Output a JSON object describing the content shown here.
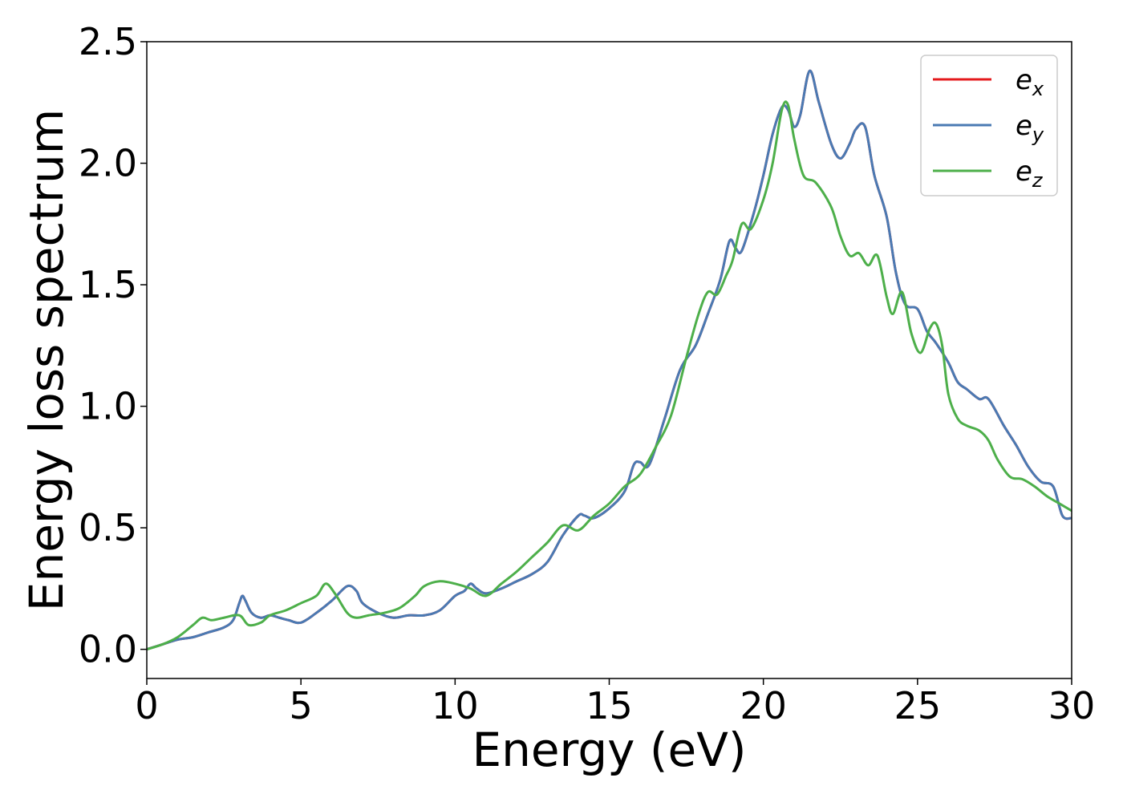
{
  "chart_data": {
    "type": "line",
    "title": "",
    "xlabel": "Energy (eV)",
    "ylabel": "Energy loss spectrum",
    "xlim": [
      0,
      30
    ],
    "ylim": [
      -0.12,
      2.5
    ],
    "xticks": [
      0,
      5,
      10,
      15,
      20,
      25,
      30
    ],
    "xtick_labels": [
      "0",
      "5",
      "10",
      "15",
      "20",
      "25",
      "30"
    ],
    "yticks": [
      0.0,
      0.5,
      1.0,
      1.5,
      2.0,
      2.5
    ],
    "ytick_labels": [
      "0.0",
      "0.5",
      "1.0",
      "1.5",
      "2.0",
      "2.5"
    ],
    "grid": false,
    "legend_position": "top-right",
    "series": [
      {
        "name": "e_x",
        "legend_base": "e",
        "legend_sub": "x",
        "color": "#e41a1c",
        "x": [
          0,
          0.5,
          1,
          1.5,
          2,
          2.5,
          2.8,
          3,
          3.1,
          3.2,
          3.4,
          3.7,
          4,
          4.3,
          4.6,
          5,
          5.5,
          6,
          6.5,
          6.8,
          7,
          7.5,
          8,
          8.5,
          9,
          9.5,
          10,
          10.3,
          10.5,
          10.7,
          11,
          11.5,
          12,
          12.5,
          13,
          13.5,
          14,
          14.2,
          14.5,
          15,
          15.5,
          15.8,
          16,
          16.3,
          16.8,
          17.3,
          17.8,
          18.2,
          18.6,
          18.9,
          19.1,
          19.3,
          19.7,
          20,
          20.3,
          20.6,
          20.8,
          21,
          21.2,
          21.5,
          21.8,
          22.2,
          22.5,
          22.8,
          23,
          23.3,
          23.6,
          24,
          24.3,
          24.6,
          25,
          25.3,
          25.6,
          26,
          26.3,
          26.6,
          27,
          27.3,
          27.8,
          28.2,
          28.6,
          29,
          29.4,
          29.7,
          30
        ],
        "y": [
          0,
          0.02,
          0.04,
          0.05,
          0.07,
          0.09,
          0.12,
          0.19,
          0.22,
          0.2,
          0.15,
          0.13,
          0.14,
          0.13,
          0.12,
          0.11,
          0.15,
          0.2,
          0.26,
          0.24,
          0.19,
          0.15,
          0.13,
          0.14,
          0.14,
          0.16,
          0.22,
          0.24,
          0.27,
          0.25,
          0.23,
          0.25,
          0.28,
          0.31,
          0.36,
          0.47,
          0.55,
          0.55,
          0.54,
          0.58,
          0.65,
          0.76,
          0.77,
          0.76,
          0.95,
          1.15,
          1.25,
          1.38,
          1.52,
          1.68,
          1.65,
          1.64,
          1.8,
          1.95,
          2.12,
          2.23,
          2.22,
          2.15,
          2.2,
          2.38,
          2.25,
          2.08,
          2.02,
          2.08,
          2.14,
          2.15,
          1.95,
          1.78,
          1.55,
          1.42,
          1.4,
          1.31,
          1.26,
          1.18,
          1.1,
          1.07,
          1.03,
          1.03,
          0.92,
          0.84,
          0.75,
          0.69,
          0.67,
          0.55,
          0.54
        ]
      },
      {
        "name": "e_y",
        "legend_base": "e",
        "legend_sub": "y",
        "color": "#4a7ab3",
        "x": [
          0,
          0.5,
          1,
          1.5,
          2,
          2.5,
          2.8,
          3,
          3.1,
          3.2,
          3.4,
          3.7,
          4,
          4.3,
          4.6,
          5,
          5.5,
          6,
          6.5,
          6.8,
          7,
          7.5,
          8,
          8.5,
          9,
          9.5,
          10,
          10.3,
          10.5,
          10.7,
          11,
          11.5,
          12,
          12.5,
          13,
          13.5,
          14,
          14.2,
          14.5,
          15,
          15.5,
          15.8,
          16,
          16.3,
          16.8,
          17.3,
          17.8,
          18.2,
          18.6,
          18.9,
          19.1,
          19.3,
          19.7,
          20,
          20.3,
          20.6,
          20.8,
          21,
          21.2,
          21.5,
          21.8,
          22.2,
          22.5,
          22.8,
          23,
          23.3,
          23.6,
          24,
          24.3,
          24.6,
          25,
          25.3,
          25.6,
          26,
          26.3,
          26.6,
          27,
          27.3,
          27.8,
          28.2,
          28.6,
          29,
          29.4,
          29.7,
          30
        ],
        "y": [
          0,
          0.02,
          0.04,
          0.05,
          0.07,
          0.09,
          0.12,
          0.19,
          0.22,
          0.2,
          0.15,
          0.13,
          0.14,
          0.13,
          0.12,
          0.11,
          0.15,
          0.2,
          0.26,
          0.24,
          0.19,
          0.15,
          0.13,
          0.14,
          0.14,
          0.16,
          0.22,
          0.24,
          0.27,
          0.25,
          0.23,
          0.25,
          0.28,
          0.31,
          0.36,
          0.47,
          0.55,
          0.55,
          0.54,
          0.58,
          0.65,
          0.76,
          0.77,
          0.76,
          0.95,
          1.15,
          1.25,
          1.38,
          1.52,
          1.68,
          1.65,
          1.64,
          1.8,
          1.95,
          2.12,
          2.23,
          2.22,
          2.15,
          2.2,
          2.38,
          2.25,
          2.08,
          2.02,
          2.08,
          2.14,
          2.15,
          1.95,
          1.78,
          1.55,
          1.42,
          1.4,
          1.31,
          1.26,
          1.18,
          1.1,
          1.07,
          1.03,
          1.03,
          0.92,
          0.84,
          0.75,
          0.69,
          0.67,
          0.55,
          0.54
        ]
      },
      {
        "name": "e_z",
        "legend_base": "e",
        "legend_sub": "z",
        "color": "#4daf4a",
        "x": [
          0,
          0.5,
          1,
          1.5,
          1.8,
          2.1,
          2.5,
          3,
          3.3,
          3.7,
          4,
          4.5,
          5,
          5.5,
          5.8,
          6.1,
          6.5,
          6.8,
          7.2,
          7.7,
          8.2,
          8.7,
          9,
          9.5,
          10,
          10.5,
          11,
          11.5,
          12,
          12.5,
          13,
          13.5,
          14,
          14.5,
          15,
          15.5,
          16,
          16.5,
          17,
          17.5,
          17.9,
          18.2,
          18.5,
          18.8,
          19,
          19.3,
          19.6,
          20,
          20.3,
          20.6,
          20.8,
          21,
          21.3,
          21.7,
          22.2,
          22.5,
          22.8,
          23.1,
          23.4,
          23.7,
          24,
          24.2,
          24.5,
          24.8,
          25.1,
          25.4,
          25.6,
          25.8,
          26,
          26.3,
          26.6,
          27,
          27.3,
          27.6,
          28,
          28.4,
          28.8,
          29.2,
          29.6,
          30
        ],
        "y": [
          0,
          0.02,
          0.05,
          0.1,
          0.13,
          0.12,
          0.13,
          0.14,
          0.1,
          0.11,
          0.14,
          0.16,
          0.19,
          0.22,
          0.27,
          0.23,
          0.15,
          0.13,
          0.14,
          0.15,
          0.17,
          0.22,
          0.26,
          0.28,
          0.27,
          0.25,
          0.22,
          0.27,
          0.32,
          0.38,
          0.44,
          0.51,
          0.49,
          0.55,
          0.6,
          0.67,
          0.72,
          0.83,
          0.96,
          1.2,
          1.38,
          1.47,
          1.46,
          1.54,
          1.6,
          1.75,
          1.73,
          1.85,
          2.0,
          2.22,
          2.24,
          2.1,
          1.95,
          1.92,
          1.82,
          1.7,
          1.62,
          1.63,
          1.58,
          1.62,
          1.45,
          1.38,
          1.47,
          1.3,
          1.22,
          1.32,
          1.34,
          1.25,
          1.05,
          0.95,
          0.92,
          0.9,
          0.86,
          0.78,
          0.71,
          0.7,
          0.67,
          0.63,
          0.6,
          0.57
        ]
      }
    ]
  }
}
